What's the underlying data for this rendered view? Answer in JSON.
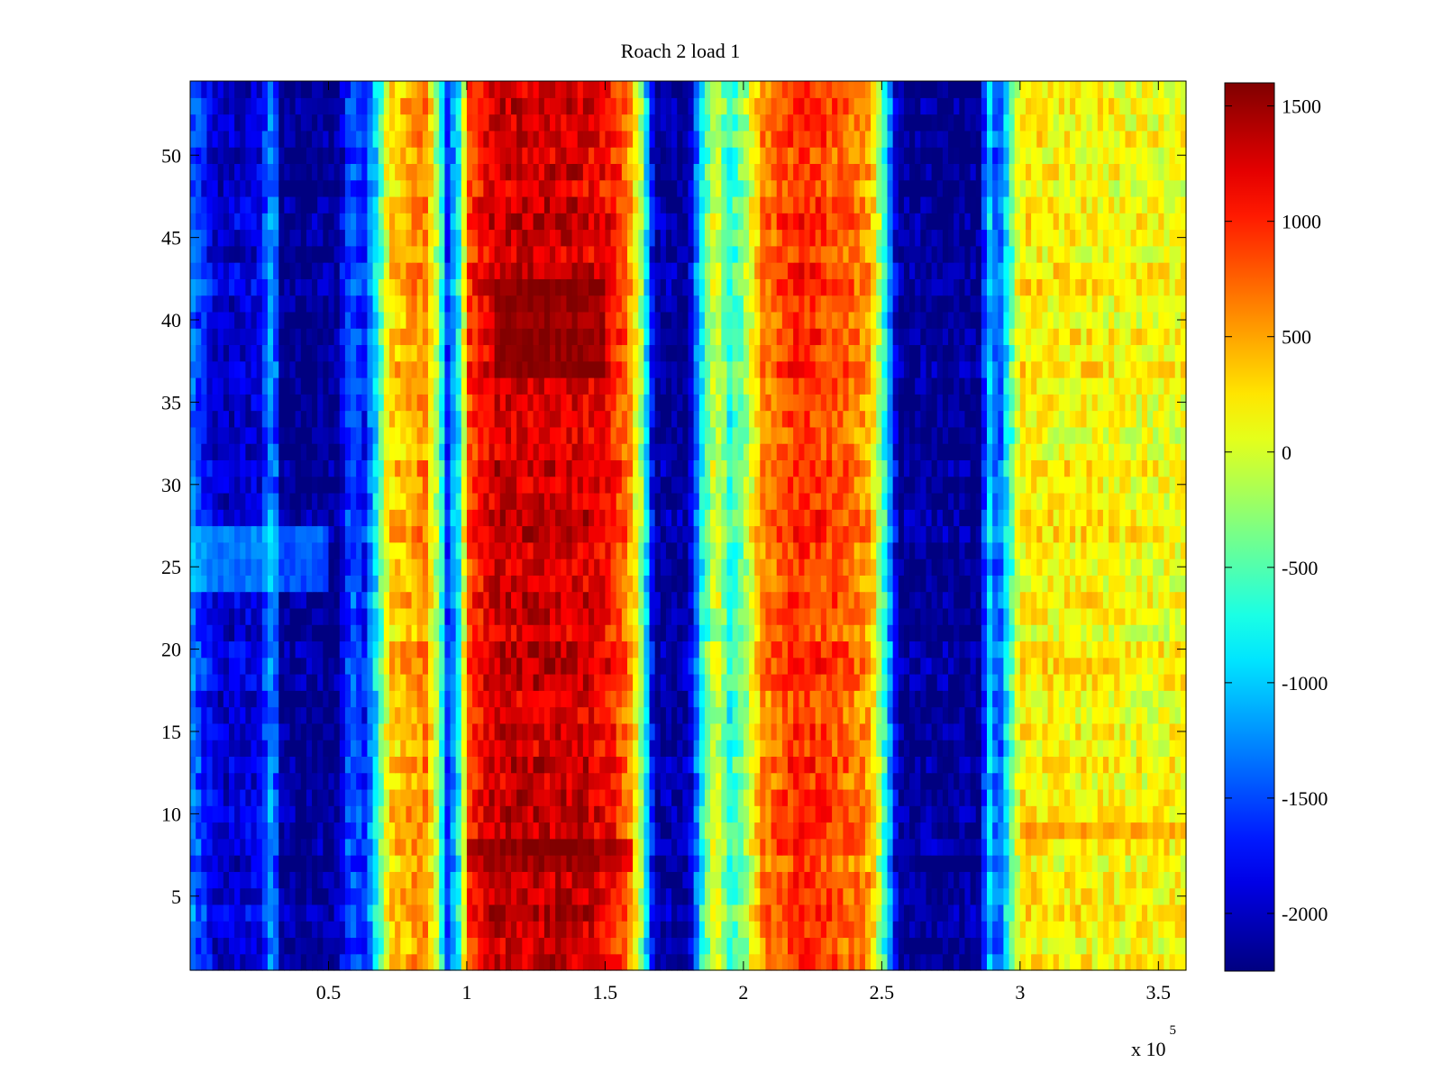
{
  "chart_data": {
    "type": "heatmap",
    "title": "Roach 2 load 1",
    "xlabel": "",
    "ylabel": "",
    "x_multiplier": "x 10",
    "x_multiplier_exponent": "5",
    "xlim": [
      0,
      360000
    ],
    "ylim": [
      0.5,
      54.5
    ],
    "x_ticks": [
      50000,
      100000,
      150000,
      200000,
      250000,
      300000,
      350000
    ],
    "x_tick_labels": [
      "0.5",
      "1",
      "1.5",
      "2",
      "2.5",
      "3",
      "3.5"
    ],
    "y_ticks": [
      5,
      10,
      15,
      20,
      25,
      30,
      35,
      40,
      45,
      50
    ],
    "y_tick_labels": [
      "5",
      "10",
      "15",
      "20",
      "25",
      "30",
      "35",
      "40",
      "45",
      "50"
    ],
    "colorbar": {
      "colormap": "jet",
      "clim": [
        -2250,
        1600
      ],
      "ticks": [
        1500,
        1000,
        500,
        0,
        -500,
        -1000,
        -1500,
        -2000
      ],
      "tick_labels": [
        "1500",
        "1000",
        "500",
        "0",
        "-500",
        "-1000",
        "-1500",
        "-2000"
      ]
    },
    "rows": 54,
    "column_profile": [
      {
        "x": 0,
        "value": -1300
      },
      {
        "x": 10000,
        "value": -2000
      },
      {
        "x": 25000,
        "value": -1900
      },
      {
        "x": 30000,
        "value": -1100
      },
      {
        "x": 33000,
        "value": -2200
      },
      {
        "x": 53000,
        "value": -2200
      },
      {
        "x": 58000,
        "value": -1400
      },
      {
        "x": 63000,
        "value": -1700
      },
      {
        "x": 68000,
        "value": -700
      },
      {
        "x": 72000,
        "value": 300
      },
      {
        "x": 85000,
        "value": 600
      },
      {
        "x": 90000,
        "value": -300
      },
      {
        "x": 93000,
        "value": -1600
      },
      {
        "x": 97000,
        "value": -800
      },
      {
        "x": 101000,
        "value": 900
      },
      {
        "x": 110000,
        "value": 1300
      },
      {
        "x": 140000,
        "value": 1300
      },
      {
        "x": 152000,
        "value": 1100
      },
      {
        "x": 158000,
        "value": 700
      },
      {
        "x": 163000,
        "value": -200
      },
      {
        "x": 168000,
        "value": -2150
      },
      {
        "x": 180000,
        "value": -2150
      },
      {
        "x": 185000,
        "value": -800
      },
      {
        "x": 190000,
        "value": 100
      },
      {
        "x": 195000,
        "value": -700
      },
      {
        "x": 200000,
        "value": -300
      },
      {
        "x": 207000,
        "value": 600
      },
      {
        "x": 220000,
        "value": 1000
      },
      {
        "x": 235000,
        "value": 800
      },
      {
        "x": 246000,
        "value": 500
      },
      {
        "x": 252000,
        "value": -900
      },
      {
        "x": 256000,
        "value": -2200
      },
      {
        "x": 285000,
        "value": -2200
      },
      {
        "x": 289000,
        "value": -1000
      },
      {
        "x": 292000,
        "value": -1600
      },
      {
        "x": 296000,
        "value": -700
      },
      {
        "x": 300000,
        "value": 200
      },
      {
        "x": 330000,
        "value": 150
      },
      {
        "x": 360000,
        "value": 100
      }
    ],
    "row_features": [
      {
        "rows": [
          7,
          8
        ],
        "x_range": [
          100000,
          160000
        ],
        "value": 1450
      },
      {
        "rows": [
          37,
          42
        ],
        "x_range": [
          110000,
          150000
        ],
        "value": 1500
      },
      {
        "rows": [
          24,
          27
        ],
        "x_range": [
          0,
          50000
        ],
        "value": -1000
      },
      {
        "rows": [
          9,
          9
        ],
        "x_range": [
          300000,
          360000
        ],
        "value": 500
      }
    ]
  }
}
